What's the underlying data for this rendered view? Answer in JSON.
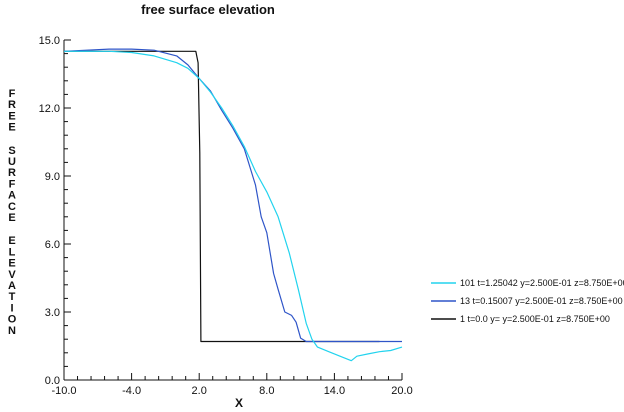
{
  "chart_data": {
    "type": "line",
    "title": "free surface elevation",
    "xlabel": "X",
    "ylabel": "FREE SURFACE ELEVATION",
    "xlim": [
      -10.0,
      20.0
    ],
    "ylim": [
      0.0,
      15.0
    ],
    "x_ticks": [
      "-10.0",
      "-4.0",
      "2.0",
      "8.0",
      "14.0",
      "20.0"
    ],
    "y_ticks": [
      "0.0",
      "3.0",
      "6.0",
      "9.0",
      "12.0",
      "15.0"
    ],
    "grid": false,
    "legend_position": "right",
    "series": [
      {
        "name": "101   t=1.25042 y=2.500E-01 z=8.750E+00",
        "color": "#22d3ee",
        "points": [
          [
            -10,
            14.5
          ],
          [
            -8,
            14.5
          ],
          [
            -6,
            14.5
          ],
          [
            -4,
            14.45
          ],
          [
            -2,
            14.3
          ],
          [
            0,
            14.0
          ],
          [
            1,
            13.75
          ],
          [
            2,
            13.3
          ],
          [
            3,
            12.7
          ],
          [
            4,
            12.0
          ],
          [
            5,
            11.2
          ],
          [
            6,
            10.3
          ],
          [
            7,
            9.2
          ],
          [
            8,
            8.3
          ],
          [
            9,
            7.2
          ],
          [
            10,
            5.6
          ],
          [
            10.8,
            4.0
          ],
          [
            11.5,
            2.5
          ],
          [
            12,
            1.8
          ],
          [
            12.5,
            1.45
          ],
          [
            13.5,
            1.25
          ],
          [
            14.5,
            1.05
          ],
          [
            15.5,
            0.85
          ],
          [
            16,
            1.05
          ],
          [
            17,
            1.15
          ],
          [
            18,
            1.25
          ],
          [
            19,
            1.3
          ],
          [
            20,
            1.45
          ]
        ]
      },
      {
        "name": "13   t=0.15007 y=2.500E-01 z=8.750E+00",
        "color": "#2f55c8",
        "points": [
          [
            -10,
            14.5
          ],
          [
            -8,
            14.55
          ],
          [
            -6,
            14.6
          ],
          [
            -4,
            14.6
          ],
          [
            -2,
            14.55
          ],
          [
            0,
            14.3
          ],
          [
            1,
            13.9
          ],
          [
            2,
            13.3
          ],
          [
            3,
            12.75
          ],
          [
            4,
            11.9
          ],
          [
            5,
            11.1
          ],
          [
            6,
            10.2
          ],
          [
            7,
            8.6
          ],
          [
            7.5,
            7.2
          ],
          [
            8,
            6.5
          ],
          [
            8.6,
            4.7
          ],
          [
            9,
            4.0
          ],
          [
            9.6,
            3.0
          ],
          [
            10.2,
            2.85
          ],
          [
            10.6,
            2.55
          ],
          [
            11,
            1.85
          ],
          [
            11.5,
            1.7
          ],
          [
            13,
            1.7
          ],
          [
            15,
            1.7
          ],
          [
            17,
            1.7
          ],
          [
            20,
            1.7
          ]
        ]
      },
      {
        "name": "1   t=0.0  y= y=2.500E-01 z=8.750E+00",
        "color": "#111111",
        "points": [
          [
            -10,
            14.5
          ],
          [
            -4,
            14.5
          ],
          [
            1.7,
            14.5
          ],
          [
            1.9,
            14.0
          ],
          [
            2.05,
            10.0
          ],
          [
            2.15,
            1.7
          ],
          [
            5,
            1.7
          ],
          [
            10,
            1.7
          ],
          [
            14,
            1.7
          ],
          [
            18,
            1.7
          ]
        ]
      }
    ]
  }
}
